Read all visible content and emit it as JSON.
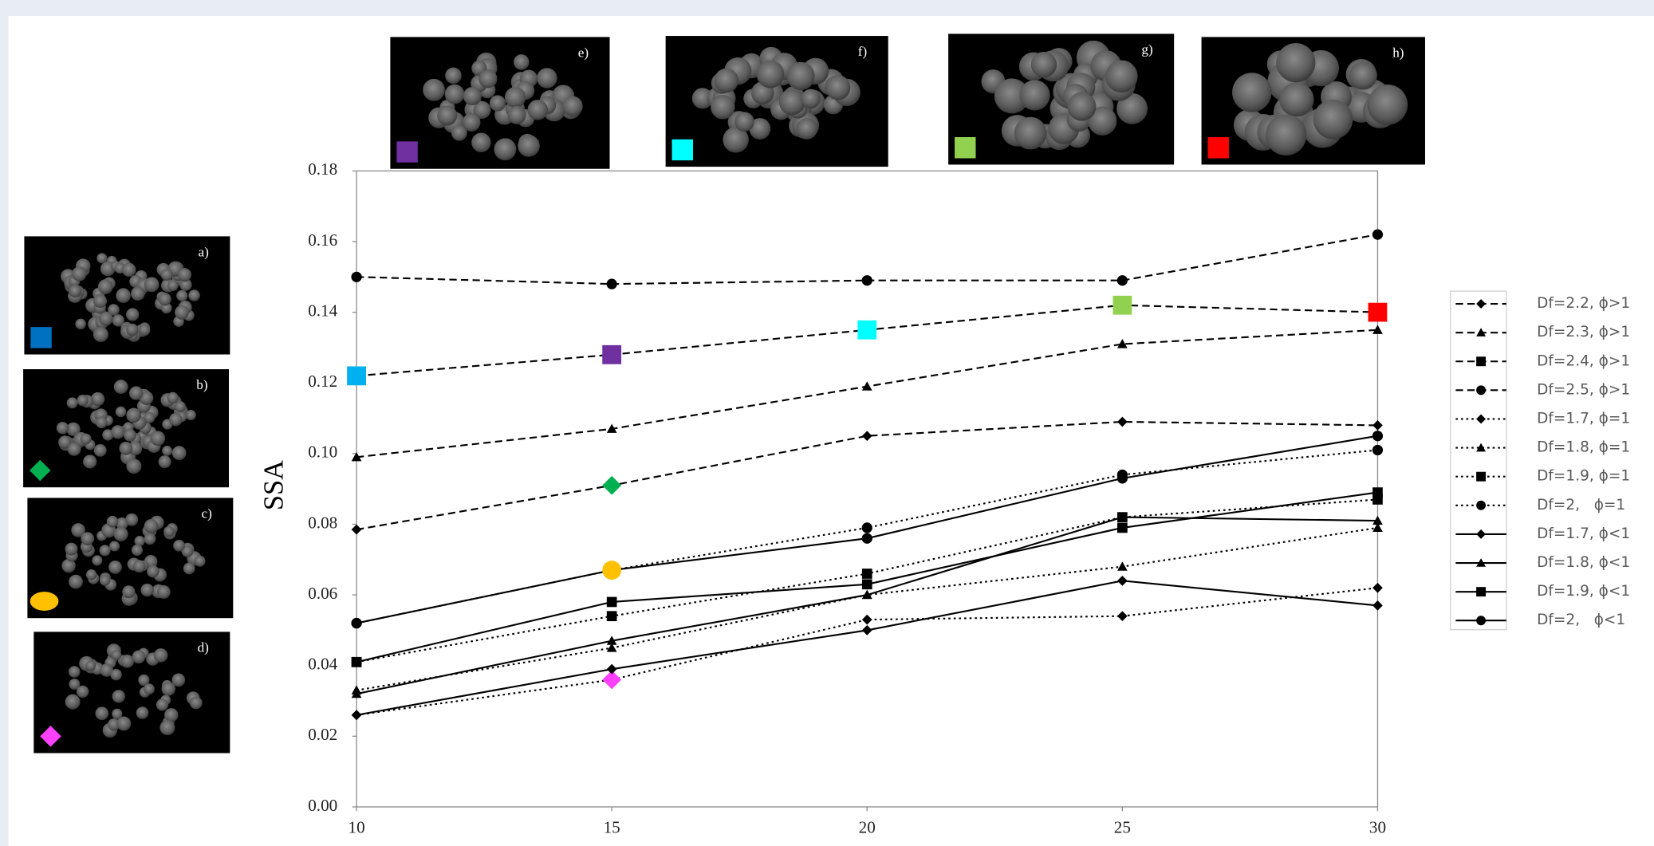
{
  "chart_data": {
    "type": "line",
    "y_label": "SSA",
    "x": [
      10,
      15,
      20,
      25,
      30
    ],
    "xlim": [
      10,
      30
    ],
    "xticks": [
      10,
      15,
      20,
      25,
      30
    ],
    "ylim": [
      0,
      0.18
    ],
    "yticks": [
      {
        "value": 0,
        "label": "0.00"
      },
      {
        "value": 0.02,
        "label": "0.02"
      },
      {
        "value": 0.04,
        "label": "0.04"
      },
      {
        "value": 0.06,
        "label": "0.06"
      },
      {
        "value": 0.08,
        "label": "0.08"
      },
      {
        "value": 0.1,
        "label": "0.10"
      },
      {
        "value": 0.12,
        "label": "0.12"
      },
      {
        "value": 0.14,
        "label": "0.14"
      },
      {
        "value": 0.16,
        "label": "0.16"
      },
      {
        "value": 0.18,
        "label": "0.18"
      }
    ],
    "grid": false,
    "legend": "right",
    "series": [
      {
        "name": "Df=2.2, ϕ>1",
        "color": "#000000",
        "dash": "dashed",
        "marker": "diamond",
        "values": [
          0.0785,
          0.091,
          0.105,
          0.109,
          0.108
        ],
        "marker_colors": [
          null,
          "#00b050",
          null,
          null,
          null
        ]
      },
      {
        "name": "Df=2.3, ϕ>1",
        "color": "#000000",
        "dash": "dashed",
        "marker": "triangle",
        "values": [
          0.099,
          0.107,
          0.119,
          0.131,
          0.135
        ]
      },
      {
        "name": "Df=2.4, ϕ>1",
        "color": "#000000",
        "dash": "dashed",
        "marker": "square",
        "values": [
          0.122,
          0.128,
          0.135,
          0.142,
          0.14
        ],
        "marker_colors": [
          "#00b0f0",
          "#7030a0",
          "#00ffff",
          "#92d050",
          "#ff0000"
        ]
      },
      {
        "name": "Df=2.5, ϕ>1",
        "color": "#000000",
        "dash": "dashed",
        "marker": "circle",
        "values": [
          0.15,
          0.148,
          0.149,
          0.149,
          0.162
        ]
      },
      {
        "name": "Df=1.7, ϕ=1",
        "color": "#000000",
        "dash": "dotted",
        "marker": "diamond",
        "values": [
          0.026,
          0.036,
          0.053,
          0.054,
          0.062
        ],
        "marker_colors": [
          null,
          "#ff40ff",
          null,
          null,
          null
        ]
      },
      {
        "name": "Df=1.8, ϕ=1",
        "color": "#000000",
        "dash": "dotted",
        "marker": "triangle",
        "values": [
          0.033,
          0.045,
          0.06,
          0.068,
          0.079
        ]
      },
      {
        "name": "Df=1.9, ϕ=1",
        "color": "#000000",
        "dash": "dotted",
        "marker": "square",
        "values": [
          0.041,
          0.054,
          0.066,
          0.082,
          0.087
        ]
      },
      {
        "name": "Df=2,   ϕ=1",
        "color": "#000000",
        "dash": "dotted",
        "marker": "circle",
        "values": [
          0.052,
          0.067,
          0.079,
          0.094,
          0.101
        ]
      },
      {
        "name": "Df=1.7, ϕ<1",
        "color": "#000000",
        "dash": "solid",
        "marker": "diamond",
        "values": [
          0.026,
          0.039,
          0.05,
          0.064,
          0.057
        ]
      },
      {
        "name": "Df=1.8, ϕ<1",
        "color": "#000000",
        "dash": "solid",
        "marker": "triangle",
        "values": [
          0.032,
          0.047,
          0.06,
          0.082,
          0.081
        ]
      },
      {
        "name": "Df=1.9, ϕ<1",
        "color": "#000000",
        "dash": "solid",
        "marker": "square",
        "values": [
          0.041,
          0.058,
          0.063,
          0.079,
          0.089
        ]
      },
      {
        "name": "Df=2,   ϕ<1",
        "color": "#000000",
        "dash": "solid",
        "marker": "circle",
        "values": [
          0.052,
          0.067,
          0.076,
          0.093,
          0.105
        ],
        "marker_colors": [
          null,
          "#ffc000",
          null,
          null,
          null
        ]
      }
    ]
  },
  "panels": [
    {
      "label": "a)",
      "color": "#0070c0",
      "marker": "square"
    },
    {
      "label": "b)",
      "color": "#00b050",
      "marker": "diamond"
    },
    {
      "label": "c)",
      "color": "#ffc000",
      "marker": "circle"
    },
    {
      "label": "d)",
      "color": "#ff40ff",
      "marker": "diamond"
    },
    {
      "label": "e)",
      "color": "#7030a0",
      "marker": "square"
    },
    {
      "label": "f)",
      "color": "#00ffff",
      "marker": "square"
    },
    {
      "label": "g)",
      "color": "#92d050",
      "marker": "square"
    },
    {
      "label": "h)",
      "color": "#ff0000",
      "marker": "square"
    }
  ]
}
